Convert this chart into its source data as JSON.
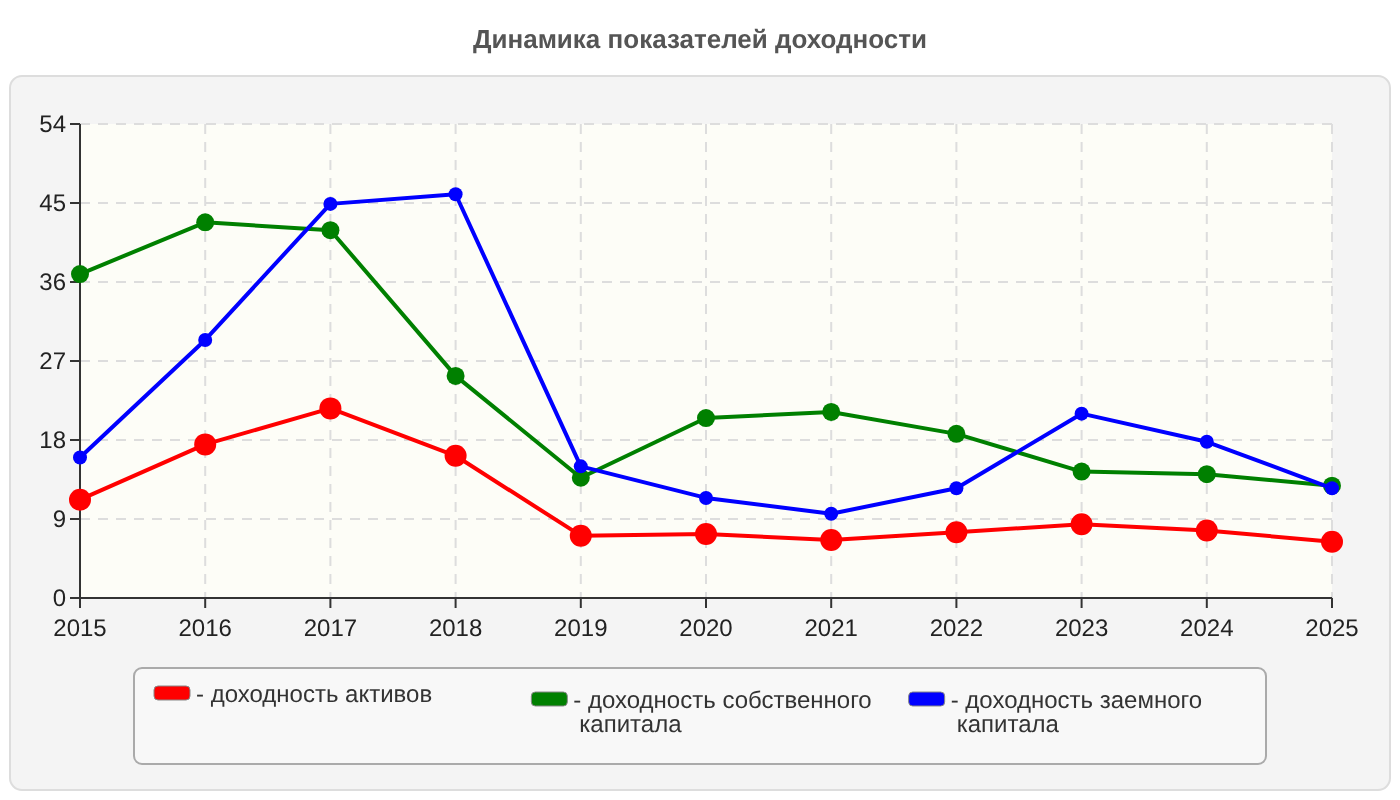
{
  "chart_data": {
    "type": "line",
    "title": "Динамика показателей доходности",
    "x": [
      2015,
      2016,
      2017,
      2018,
      2019,
      2020,
      2021,
      2022,
      2023,
      2024,
      2025
    ],
    "xlim": [
      2015,
      2025
    ],
    "xticks": [
      2015,
      2016,
      2017,
      2018,
      2019,
      2020,
      2021,
      2022,
      2023,
      2024,
      2025
    ],
    "ylim": [
      0,
      54
    ],
    "yticks": [
      0,
      9,
      18,
      27,
      36,
      45,
      54
    ],
    "grid": true,
    "legend": "bottom",
    "marker": "circle",
    "line_style": "solid",
    "series": [
      {
        "name": "- доходность активов",
        "color": "#ff0000",
        "values": [
          11.2,
          17.5,
          21.6,
          16.2,
          7.1,
          7.3,
          6.6,
          7.5,
          8.4,
          7.7,
          6.4
        ]
      },
      {
        "name": "- доходность собственного капитала",
        "color": "#008000",
        "values": [
          36.9,
          42.8,
          41.9,
          25.3,
          13.7,
          20.5,
          21.2,
          18.7,
          14.4,
          14.1,
          12.8
        ]
      },
      {
        "name": "- доходность заемного капитала",
        "color": "#0000ff",
        "values": [
          16,
          29.4,
          44.9,
          46,
          15,
          11.4,
          9.6,
          12.5,
          21,
          17.8,
          12.5
        ]
      }
    ]
  }
}
